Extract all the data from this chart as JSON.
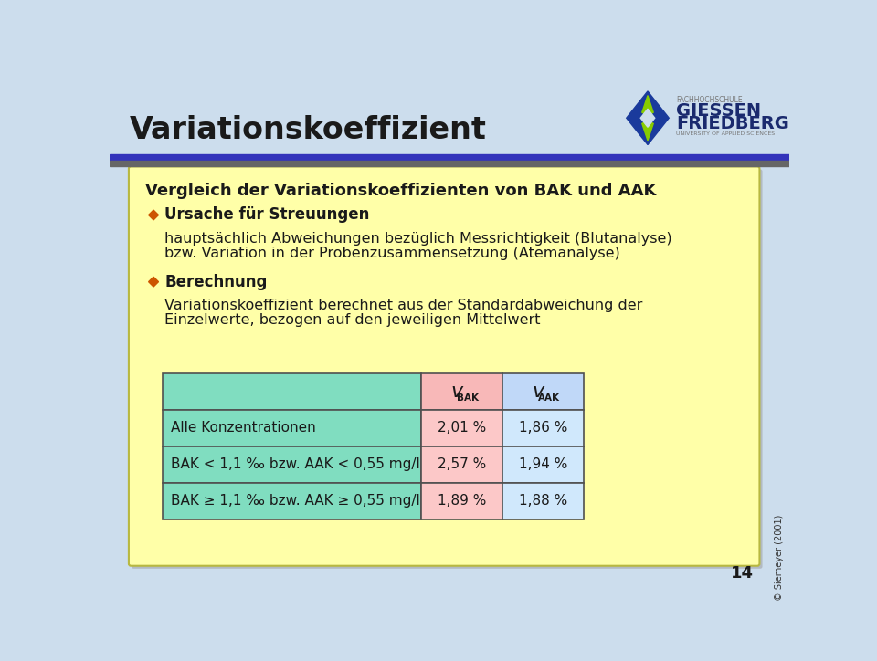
{
  "title": "Variationskoeffizient",
  "bg_color": "#ccdded",
  "content_box_color": "#ffffa8",
  "content_box_edge": "#b0b060",
  "header_bar_blue": "#3333bb",
  "header_bar_gray": "#666666",
  "main_title": "Vergleich der Variationskoeffizienten von BAK und AAK",
  "bullet_color": "#cc5500",
  "bullet1_bold": "Ursache für Streuungen",
  "bullet1_line1": "hauptsächlich Abweichungen bezüglich Messrichtigkeit (Blutanalyse)",
  "bullet1_line2": "bzw. Variation in der Probenzusammensetzung (Atemanalyse)",
  "bullet2_bold": "Berechnung",
  "bullet2_line1": "Variationskoeffizient berechnet aus der Standardabweichung der",
  "bullet2_line2": "Einzelwerte, bezogen auf den jeweiligen Mittelwert",
  "table_header_left_bg": "#80ddc0",
  "table_header_bak_bg": "#f8b8b8",
  "table_header_aak_bg": "#c0d8f8",
  "table_row_left_bg": "#80ddc0",
  "table_row_bak_bg": "#fcc8c8",
  "table_row_aak_bg": "#d0e8fc",
  "table_border": "#505050",
  "rows": [
    {
      "label": "Alle Konzentrationen",
      "bak": "2,01 %",
      "aak": "1,86 %"
    },
    {
      "label": "BAK < 1,1 ‰ bzw. AAK < 0,55 mg/l",
      "bak": "2,57 %",
      "aak": "1,94 %"
    },
    {
      "label": "BAK ≥ 1,1 ‰ bzw. AAK ≥ 0,55 mg/l",
      "bak": "1,89 %",
      "aak": "1,88 %"
    }
  ],
  "page_number": "14",
  "copyright": "© Siemeyer (2001)",
  "font_color": "#1a1a1a",
  "title_color": "#1a1a1a",
  "logo_blue": "#1a3a9c",
  "logo_green": "#88cc00",
  "logo_text_color": "#1a2a6e",
  "logo_sub_color": "#777777"
}
